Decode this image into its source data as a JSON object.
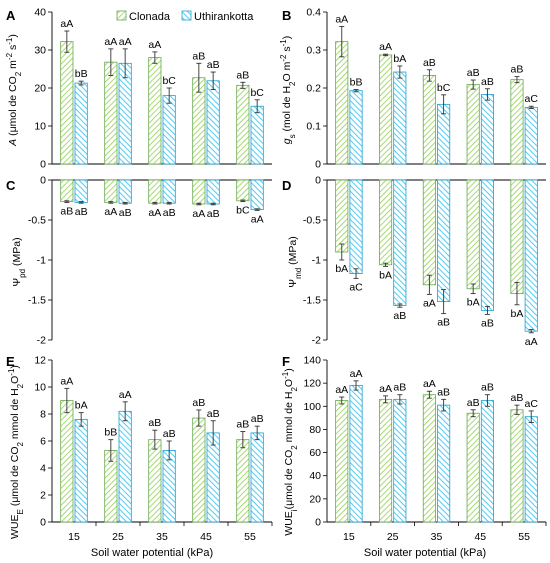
{
  "legend": {
    "series": [
      "Clonada",
      "Uthirankotta"
    ]
  },
  "xlabel": "Soil water potential (kPa)",
  "colors": {
    "clonada": "#92d050",
    "uthirankotta": "#41c6f0"
  },
  "chart_data": [
    {
      "panel": "A",
      "type": "bar",
      "ylabel": "A (μmol de CO₂ m⁻² s⁻¹)",
      "categories": [
        "15",
        "25",
        "35",
        "45",
        "55"
      ],
      "ylim": [
        0,
        40
      ],
      "yticks": [
        0,
        10,
        20,
        30,
        40
      ],
      "series": [
        {
          "name": "Clonada",
          "values": [
            32.2,
            26.8,
            28.0,
            22.7,
            20.7
          ],
          "errors": [
            2.8,
            3.5,
            1.5,
            3.8,
            0.8
          ],
          "labels": [
            "aA",
            "aA",
            "aA",
            "aB",
            "aB"
          ]
        },
        {
          "name": "Uthirankotta",
          "values": [
            21.3,
            26.5,
            18.0,
            21.9,
            15.2
          ],
          "errors": [
            0.5,
            3.8,
            2.0,
            2.3,
            1.7
          ],
          "labels": [
            "bB",
            "aA",
            "bC",
            "aB",
            "bC"
          ]
        }
      ]
    },
    {
      "panel": "B",
      "type": "bar",
      "ylabel": "gs (mol de H₂O m⁻² s⁻¹)",
      "categories": [
        "15",
        "25",
        "35",
        "45",
        "55"
      ],
      "ylim": [
        0,
        0.4
      ],
      "yticks": [
        0,
        0.1,
        0.2,
        0.3,
        0.4
      ],
      "series": [
        {
          "name": "Clonada",
          "values": [
            0.322,
            0.287,
            0.233,
            0.209,
            0.222
          ],
          "errors": [
            0.04,
            0.002,
            0.015,
            0.012,
            0.008
          ],
          "labels": [
            "aA",
            "aA",
            "aB",
            "aB",
            "aB"
          ]
        },
        {
          "name": "Uthirankotta",
          "values": [
            0.193,
            0.242,
            0.157,
            0.183,
            0.149
          ],
          "errors": [
            0.003,
            0.016,
            0.025,
            0.015,
            0.003
          ],
          "labels": [
            "bB",
            "bA",
            "bC",
            "aB",
            "aC"
          ]
        }
      ]
    },
    {
      "panel": "C",
      "type": "bar",
      "ylabel": "Ψpd (MPa)",
      "categories": [
        "15",
        "25",
        "35",
        "45",
        "55"
      ],
      "ylim": [
        -2,
        0
      ],
      "yticks": [
        0,
        -0.5,
        -1,
        -1.5,
        -2
      ],
      "series": [
        {
          "name": "Clonada",
          "values": [
            -0.27,
            -0.28,
            -0.29,
            -0.3,
            -0.26
          ],
          "errors": [
            0.01,
            0.01,
            0.01,
            0.01,
            0.01
          ],
          "labels": [
            "aB",
            "aA",
            "aA",
            "aA",
            "bC"
          ]
        },
        {
          "name": "Uthirankotta",
          "values": [
            -0.28,
            -0.29,
            -0.29,
            -0.3,
            -0.37
          ],
          "errors": [
            0.01,
            0.01,
            0.01,
            0.01,
            0.01
          ],
          "labels": [
            "aB",
            "aB",
            "aB",
            "aB",
            "aA"
          ]
        }
      ]
    },
    {
      "panel": "D",
      "type": "bar",
      "ylabel": "Ψmd (MPa)",
      "categories": [
        "15",
        "25",
        "35",
        "45",
        "55"
      ],
      "ylim": [
        -2,
        0
      ],
      "yticks": [
        0,
        -0.5,
        -1,
        -1.5,
        -2
      ],
      "series": [
        {
          "name": "Clonada",
          "values": [
            -0.9,
            -1.06,
            -1.31,
            -1.36,
            -1.42
          ],
          "errors": [
            0.1,
            0.02,
            0.12,
            0.06,
            0.14
          ],
          "labels": [
            "bA",
            "bA",
            "aA",
            "bA",
            "bA"
          ]
        },
        {
          "name": "Uthirankotta",
          "values": [
            -1.17,
            -1.57,
            -1.52,
            -1.63,
            -1.89
          ],
          "errors": [
            0.06,
            0.02,
            0.15,
            0.05,
            0.02
          ],
          "labels": [
            "aC",
            "aB",
            "aB",
            "aB",
            "aA"
          ]
        }
      ]
    },
    {
      "panel": "E",
      "type": "bar",
      "ylabel": "WUEe (μmol de CO₂ mmol de H₂O⁻¹)",
      "categories": [
        "15",
        "25",
        "35",
        "45",
        "55"
      ],
      "ylim": [
        0,
        12
      ],
      "yticks": [
        0,
        2,
        4,
        6,
        8,
        10,
        12
      ],
      "series": [
        {
          "name": "Clonada",
          "values": [
            9.0,
            5.3,
            6.1,
            7.7,
            6.1
          ],
          "errors": [
            0.9,
            0.8,
            0.7,
            0.6,
            0.6
          ],
          "labels": [
            "aA",
            "bB",
            "aB",
            "aB",
            "aB"
          ]
        },
        {
          "name": "Uthirankotta",
          "values": [
            7.6,
            8.2,
            5.3,
            6.6,
            6.6
          ],
          "errors": [
            0.5,
            0.7,
            0.7,
            0.9,
            0.5
          ],
          "labels": [
            "bA",
            "aA",
            "aB",
            "aB",
            "aB"
          ]
        }
      ]
    },
    {
      "panel": "F",
      "type": "bar",
      "ylabel": "WUEi (μmol de CO₂ mmol de H₂O⁻¹)",
      "categories": [
        "15",
        "25",
        "35",
        "45",
        "55"
      ],
      "ylim": [
        0,
        140
      ],
      "yticks": [
        0,
        20,
        40,
        60,
        80,
        100,
        120,
        140
      ],
      "series": [
        {
          "name": "Clonada",
          "values": [
            105,
            106,
            110,
            94,
            97
          ],
          "errors": [
            3,
            3,
            3,
            3,
            4
          ],
          "labels": [
            "aA",
            "aA",
            "aA",
            "aB",
            "aB"
          ]
        },
        {
          "name": "Uthirankotta",
          "values": [
            118,
            106,
            101,
            105,
            91
          ],
          "errors": [
            4,
            4,
            5,
            5,
            5
          ],
          "labels": [
            "aA",
            "aB",
            "aB",
            "aB",
            "aC"
          ]
        }
      ]
    }
  ]
}
